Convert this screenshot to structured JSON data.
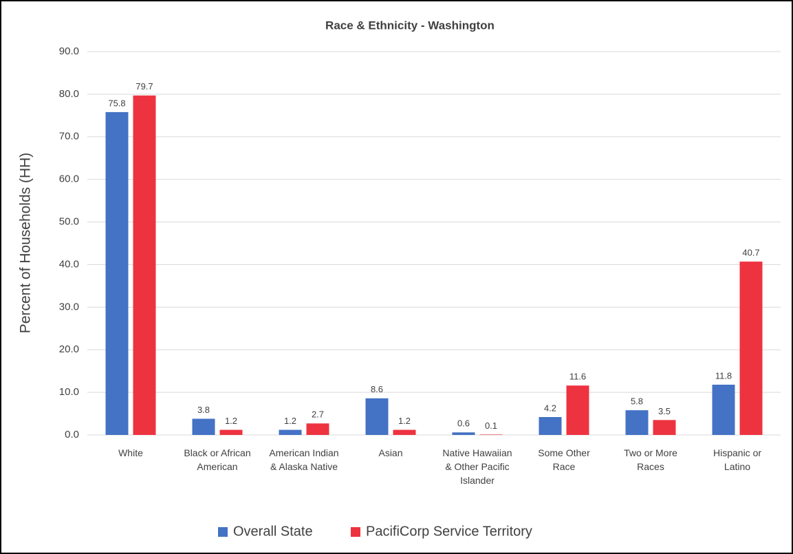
{
  "chart_data": {
    "type": "bar",
    "title": "Race & Ethnicity - Washington",
    "y_label": "Percent of Households (HH)",
    "categories": [
      "White",
      "Black or African American",
      "American Indian & Alaska Native",
      "Asian",
      "Native Hawaiian & Other Pacific Islander",
      "Some Other Race",
      "Two or More Races",
      "Hispanic or Latino"
    ],
    "series": [
      {
        "name": "Overall State",
        "color": "#4472c4",
        "values": [
          75.8,
          3.8,
          1.2,
          8.6,
          0.6,
          4.2,
          5.8,
          11.8
        ]
      },
      {
        "name": "PacifiCorp Service Territory",
        "color": "#ee3340",
        "values": [
          79.7,
          1.2,
          2.7,
          1.2,
          0.1,
          11.6,
          3.5,
          40.7
        ]
      }
    ],
    "ylim": [
      0,
      90
    ],
    "yticks": [
      {
        "value": 0,
        "label": "0.0"
      },
      {
        "value": 10,
        "label": "10.0"
      },
      {
        "value": 20,
        "label": "20.0"
      },
      {
        "value": 30,
        "label": "30.0"
      },
      {
        "value": 40,
        "label": "40.0"
      },
      {
        "value": 50,
        "label": "50.0"
      },
      {
        "value": 60,
        "label": "60.0"
      },
      {
        "value": 70,
        "label": "70.0"
      },
      {
        "value": 80,
        "label": "80.0"
      },
      {
        "value": 90,
        "label": "90.0"
      }
    ],
    "grid": true,
    "legend": "bottom"
  }
}
